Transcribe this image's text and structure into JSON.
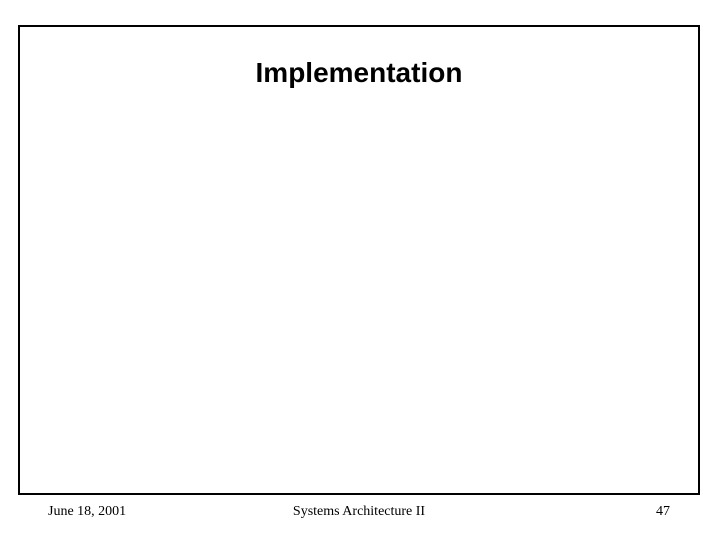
{
  "slide": {
    "title": "Implementation",
    "footer": {
      "date": "June 18, 2001",
      "course": "Systems Architecture II",
      "page_number": "47"
    },
    "style": {
      "frame_border_color": "#000000",
      "background_color": "#ffffff",
      "title_fontsize": 28,
      "title_font": "Arial",
      "footer_fontsize": 14,
      "footer_font": "Times New Roman"
    }
  }
}
